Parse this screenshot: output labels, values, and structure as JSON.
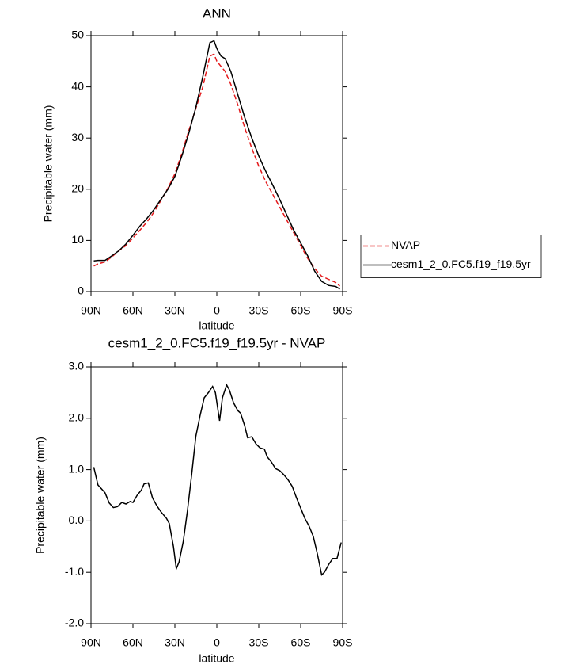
{
  "chart_data": [
    {
      "type": "line",
      "title": "ANN",
      "x_label": "latitude",
      "y_label": "Precipitable water (mm)",
      "xlim": [
        90,
        -90
      ],
      "xticks": [
        {
          "value": 90,
          "label": "90N"
        },
        {
          "value": 60,
          "label": "60N"
        },
        {
          "value": 30,
          "label": "30N"
        },
        0,
        {
          "value": -30,
          "label": "30S"
        },
        {
          "value": -60,
          "label": "60S"
        },
        {
          "value": -90,
          "label": "90S"
        }
      ],
      "ylim": [
        0,
        50
      ],
      "yticks": [
        0,
        10,
        20,
        30,
        40,
        50
      ],
      "legend": "right",
      "x": [
        88,
        85,
        80,
        75,
        70,
        65,
        60,
        55,
        50,
        45,
        40,
        35,
        30,
        25,
        20,
        15,
        10,
        5,
        2,
        0,
        -3,
        -6,
        -10,
        -15,
        -20,
        -25,
        -30,
        -35,
        -40,
        -45,
        -50,
        -55,
        -60,
        -65,
        -70,
        -75,
        -80,
        -85,
        -88
      ],
      "series": [
        {
          "name": "NVAP",
          "color": "#e41a1c",
          "linestyle": "dashed",
          "values": [
            5,
            5.4,
            5.8,
            6.8,
            8,
            9,
            10.5,
            12,
            13.6,
            15.5,
            17.8,
            20.2,
            23,
            27,
            31.5,
            35.8,
            40,
            46,
            46.4,
            45,
            44,
            43,
            40.5,
            36.5,
            32,
            28,
            24.5,
            21.5,
            19,
            16.5,
            14,
            11.5,
            9,
            6.5,
            4.5,
            3,
            2.4,
            1.8,
            1.1
          ]
        },
        {
          "name": "cesm1_2_0.FC5.f19_f19.5yr",
          "color": "#000000",
          "linestyle": "solid",
          "values": [
            6,
            6.1,
            6.1,
            7,
            8,
            9.3,
            11,
            12.8,
            14.3,
            16,
            18,
            20,
            22.5,
            26.5,
            31,
            36,
            42,
            48.6,
            49,
            47.5,
            46,
            45.5,
            43,
            38.5,
            34,
            30,
            26.5,
            23.5,
            20.8,
            18,
            15,
            12,
            9.5,
            7,
            4,
            2,
            1.2,
            1,
            0.5
          ]
        }
      ]
    },
    {
      "type": "line",
      "title": "cesm1_2_0.FC5.f19_f19.5yr - NVAP",
      "x_label": "latitude",
      "y_label": "Precipitable water (mm)",
      "xlim": [
        90,
        -90
      ],
      "xticks": [
        {
          "value": 90,
          "label": "90N"
        },
        {
          "value": 60,
          "label": "60N"
        },
        {
          "value": 30,
          "label": "30N"
        },
        0,
        {
          "value": -30,
          "label": "30S"
        },
        {
          "value": -60,
          "label": "60S"
        },
        {
          "value": -90,
          "label": "90S"
        }
      ],
      "ylim": [
        -2,
        3
      ],
      "yticks": [
        {
          "value": -2,
          "label": "-2.0"
        },
        {
          "value": -1,
          "label": "-1.0"
        },
        {
          "value": 0,
          "label": "0.0"
        },
        {
          "value": 1,
          "label": "1.0"
        },
        {
          "value": 2,
          "label": "2.0"
        },
        {
          "value": 3,
          "label": "3.0"
        }
      ],
      "x": [
        88,
        85,
        80,
        77,
        74,
        71,
        68,
        65,
        62,
        60,
        57,
        54,
        52,
        49,
        46,
        43,
        40,
        36,
        34,
        31,
        29,
        27,
        24,
        21,
        18,
        15,
        12,
        9,
        6,
        3,
        1,
        -2,
        -4,
        -7,
        -9,
        -12,
        -15,
        -17,
        -20,
        -22,
        -25,
        -28,
        -31,
        -34,
        -36,
        -39,
        -42,
        -45,
        -48,
        -51,
        -54,
        -57,
        -60,
        -63,
        -66,
        -69,
        -72,
        -75,
        -77,
        -80,
        -83,
        -86,
        -89
      ],
      "series": [
        {
          "color": "#000000",
          "linestyle": "solid",
          "values": [
            1.05,
            0.7,
            0.55,
            0.35,
            0.26,
            0.28,
            0.36,
            0.33,
            0.38,
            0.36,
            0.5,
            0.6,
            0.72,
            0.74,
            0.45,
            0.3,
            0.18,
            0.05,
            -0.05,
            -0.5,
            -0.93,
            -0.8,
            -0.4,
            0.2,
            0.9,
            1.65,
            2.05,
            2.4,
            2.5,
            2.62,
            2.5,
            1.95,
            2.4,
            2.65,
            2.55,
            2.3,
            2.15,
            2.1,
            1.85,
            1.62,
            1.64,
            1.5,
            1.42,
            1.4,
            1.25,
            1.15,
            1.02,
            0.98,
            0.9,
            0.8,
            0.67,
            0.45,
            0.25,
            0.05,
            -0.1,
            -0.3,
            -0.65,
            -1.05,
            -1,
            -0.85,
            -0.73,
            -0.73,
            -0.42
          ]
        }
      ]
    }
  ]
}
